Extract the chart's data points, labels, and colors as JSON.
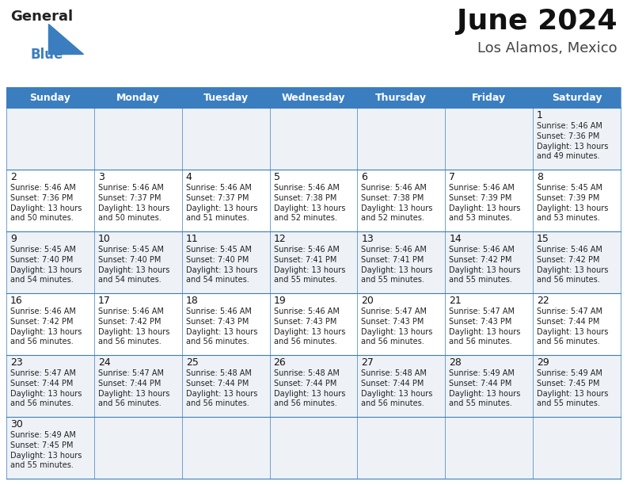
{
  "title": "June 2024",
  "subtitle": "Los Alamos, Mexico",
  "header_bg": "#3a7ebf",
  "header_text_color": "#ffffff",
  "days_of_week": [
    "Sunday",
    "Monday",
    "Tuesday",
    "Wednesday",
    "Thursday",
    "Friday",
    "Saturday"
  ],
  "row0_bg": "#eef2f7",
  "row1_bg": "#ffffff",
  "row2_bg": "#eef2f7",
  "row3_bg": "#ffffff",
  "row4_bg": "#eef2f7",
  "row5_bg": "#eef2f7",
  "cell_text_color": "#222222",
  "grid_line_color": "#3a7ebf",
  "calendar_data": [
    [
      "",
      "",
      "",
      "",
      "",
      "",
      "1\nSunrise: 5:46 AM\nSunset: 7:36 PM\nDaylight: 13 hours\nand 49 minutes."
    ],
    [
      "2\nSunrise: 5:46 AM\nSunset: 7:36 PM\nDaylight: 13 hours\nand 50 minutes.",
      "3\nSunrise: 5:46 AM\nSunset: 7:37 PM\nDaylight: 13 hours\nand 50 minutes.",
      "4\nSunrise: 5:46 AM\nSunset: 7:37 PM\nDaylight: 13 hours\nand 51 minutes.",
      "5\nSunrise: 5:46 AM\nSunset: 7:38 PM\nDaylight: 13 hours\nand 52 minutes.",
      "6\nSunrise: 5:46 AM\nSunset: 7:38 PM\nDaylight: 13 hours\nand 52 minutes.",
      "7\nSunrise: 5:46 AM\nSunset: 7:39 PM\nDaylight: 13 hours\nand 53 minutes.",
      "8\nSunrise: 5:45 AM\nSunset: 7:39 PM\nDaylight: 13 hours\nand 53 minutes."
    ],
    [
      "9\nSunrise: 5:45 AM\nSunset: 7:40 PM\nDaylight: 13 hours\nand 54 minutes.",
      "10\nSunrise: 5:45 AM\nSunset: 7:40 PM\nDaylight: 13 hours\nand 54 minutes.",
      "11\nSunrise: 5:45 AM\nSunset: 7:40 PM\nDaylight: 13 hours\nand 54 minutes.",
      "12\nSunrise: 5:46 AM\nSunset: 7:41 PM\nDaylight: 13 hours\nand 55 minutes.",
      "13\nSunrise: 5:46 AM\nSunset: 7:41 PM\nDaylight: 13 hours\nand 55 minutes.",
      "14\nSunrise: 5:46 AM\nSunset: 7:42 PM\nDaylight: 13 hours\nand 55 minutes.",
      "15\nSunrise: 5:46 AM\nSunset: 7:42 PM\nDaylight: 13 hours\nand 56 minutes."
    ],
    [
      "16\nSunrise: 5:46 AM\nSunset: 7:42 PM\nDaylight: 13 hours\nand 56 minutes.",
      "17\nSunrise: 5:46 AM\nSunset: 7:42 PM\nDaylight: 13 hours\nand 56 minutes.",
      "18\nSunrise: 5:46 AM\nSunset: 7:43 PM\nDaylight: 13 hours\nand 56 minutes.",
      "19\nSunrise: 5:46 AM\nSunset: 7:43 PM\nDaylight: 13 hours\nand 56 minutes.",
      "20\nSunrise: 5:47 AM\nSunset: 7:43 PM\nDaylight: 13 hours\nand 56 minutes.",
      "21\nSunrise: 5:47 AM\nSunset: 7:43 PM\nDaylight: 13 hours\nand 56 minutes.",
      "22\nSunrise: 5:47 AM\nSunset: 7:44 PM\nDaylight: 13 hours\nand 56 minutes."
    ],
    [
      "23\nSunrise: 5:47 AM\nSunset: 7:44 PM\nDaylight: 13 hours\nand 56 minutes.",
      "24\nSunrise: 5:47 AM\nSunset: 7:44 PM\nDaylight: 13 hours\nand 56 minutes.",
      "25\nSunrise: 5:48 AM\nSunset: 7:44 PM\nDaylight: 13 hours\nand 56 minutes.",
      "26\nSunrise: 5:48 AM\nSunset: 7:44 PM\nDaylight: 13 hours\nand 56 minutes.",
      "27\nSunrise: 5:48 AM\nSunset: 7:44 PM\nDaylight: 13 hours\nand 56 minutes.",
      "28\nSunrise: 5:49 AM\nSunset: 7:44 PM\nDaylight: 13 hours\nand 55 minutes.",
      "29\nSunrise: 5:49 AM\nSunset: 7:45 PM\nDaylight: 13 hours\nand 55 minutes."
    ],
    [
      "30\nSunrise: 5:49 AM\nSunset: 7:45 PM\nDaylight: 13 hours\nand 55 minutes.",
      "",
      "",
      "",
      "",
      "",
      ""
    ]
  ],
  "logo_triangle_color": "#3a7ebf",
  "fig_width": 7.92,
  "fig_height": 6.12,
  "dpi": 100
}
